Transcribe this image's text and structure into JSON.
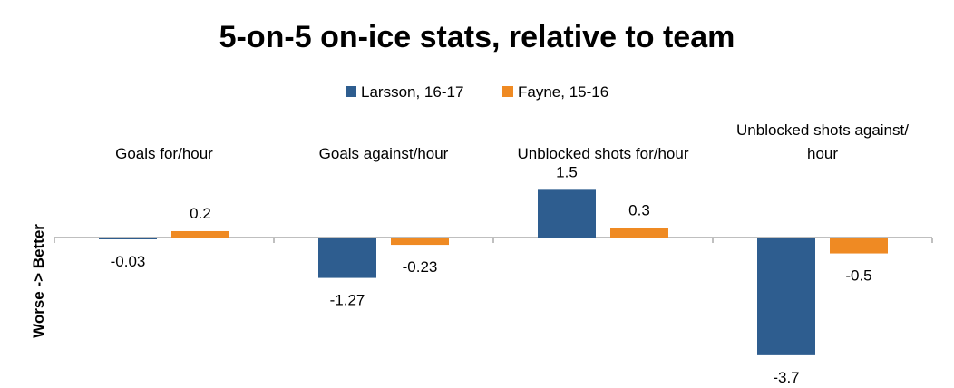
{
  "chart_data": {
    "type": "bar",
    "title": "5-on-5 on-ice stats, relative to team",
    "ylabel": "Worse -> Better",
    "xlabel": "",
    "categories": [
      [
        "Goals for/hour"
      ],
      [
        "Goals against/hour"
      ],
      [
        "Unblocked shots for/hour"
      ],
      [
        "Unblocked shots against/",
        "hour"
      ]
    ],
    "series": [
      {
        "name": "Larsson, 16-17",
        "color": "#2e5d8f",
        "values": [
          -0.03,
          -1.27,
          1.5,
          -3.7
        ],
        "labels": [
          "-0.03",
          "-1.27",
          "1.5",
          "-3.7"
        ]
      },
      {
        "name": "Fayne, 15-16",
        "color": "#ef8a23",
        "values": [
          0.2,
          -0.23,
          0.3,
          -0.5
        ],
        "labels": [
          "0.2",
          "-0.23",
          "0.3",
          "-0.5"
        ]
      }
    ],
    "legend": "top",
    "grid": false,
    "axis_color": "#aaaaaa"
  }
}
